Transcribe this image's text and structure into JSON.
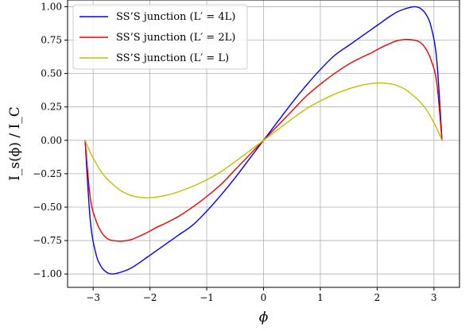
{
  "chart_data": {
    "type": "line",
    "xlabel": "ϕ",
    "ylabel": "I_s(ϕ) / I_C",
    "xlim": [
      -3.45,
      3.45
    ],
    "ylim": [
      -1.1,
      1.05
    ],
    "xticks": [
      -3,
      -2,
      -1,
      0,
      1,
      2,
      3
    ],
    "xtick_labels": [
      "−3",
      "−2",
      "−1",
      "0",
      "1",
      "2",
      "3"
    ],
    "yticks": [
      -1.0,
      -0.75,
      -0.5,
      -0.25,
      0.0,
      0.25,
      0.5,
      0.75,
      1.0
    ],
    "ytick_labels": [
      "−1.00",
      "−0.75",
      "−0.50",
      "−0.25",
      "0.00",
      "0.25",
      "0.50",
      "0.75",
      "1.00"
    ],
    "grid": true,
    "legend_position": "top-left",
    "x": [
      -3.1416,
      -3.05,
      -2.95,
      -2.85,
      -2.75,
      -2.65,
      -2.5,
      -2.35,
      -2.2,
      -2.05,
      -1.9,
      -1.7,
      -1.5,
      -1.25,
      -1.0,
      -0.75,
      -0.5,
      -0.25,
      0.0,
      0.25,
      0.5,
      0.75,
      1.0,
      1.25,
      1.5,
      1.7,
      1.9,
      2.05,
      2.2,
      2.35,
      2.5,
      2.65,
      2.75,
      2.85,
      2.95,
      3.05,
      3.1416
    ],
    "series": [
      {
        "name": "SS’S junction (L′ = 4L)",
        "color": "#0000ff",
        "values": [
          0.0,
          -0.6,
          -0.85,
          -0.95,
          -0.99,
          -1.0,
          -0.985,
          -0.96,
          -0.92,
          -0.875,
          -0.83,
          -0.77,
          -0.71,
          -0.635,
          -0.53,
          -0.41,
          -0.28,
          -0.14,
          0.0,
          0.14,
          0.28,
          0.41,
          0.53,
          0.635,
          0.71,
          0.77,
          0.83,
          0.875,
          0.92,
          0.96,
          0.985,
          1.0,
          0.99,
          0.95,
          0.85,
          0.6,
          0.0
        ]
      },
      {
        "name": "SS’S junction (L′ = 2L)",
        "color": "#ee0000",
        "values": [
          0.0,
          -0.43,
          -0.6,
          -0.69,
          -0.735,
          -0.75,
          -0.755,
          -0.745,
          -0.72,
          -0.69,
          -0.655,
          -0.615,
          -0.57,
          -0.5,
          -0.42,
          -0.33,
          -0.22,
          -0.11,
          0.0,
          0.11,
          0.22,
          0.33,
          0.42,
          0.5,
          0.57,
          0.615,
          0.655,
          0.69,
          0.72,
          0.745,
          0.755,
          0.75,
          0.735,
          0.69,
          0.6,
          0.43,
          0.0
        ]
      },
      {
        "name": "SS’S junction (L′ = L)",
        "color": "#bfbf00",
        "values": [
          0.0,
          -0.09,
          -0.17,
          -0.24,
          -0.29,
          -0.33,
          -0.38,
          -0.41,
          -0.425,
          -0.43,
          -0.425,
          -0.41,
          -0.385,
          -0.345,
          -0.295,
          -0.235,
          -0.16,
          -0.08,
          0.0,
          0.08,
          0.16,
          0.235,
          0.295,
          0.345,
          0.385,
          0.41,
          0.425,
          0.43,
          0.425,
          0.41,
          0.38,
          0.33,
          0.29,
          0.24,
          0.17,
          0.09,
          0.0
        ]
      }
    ]
  }
}
